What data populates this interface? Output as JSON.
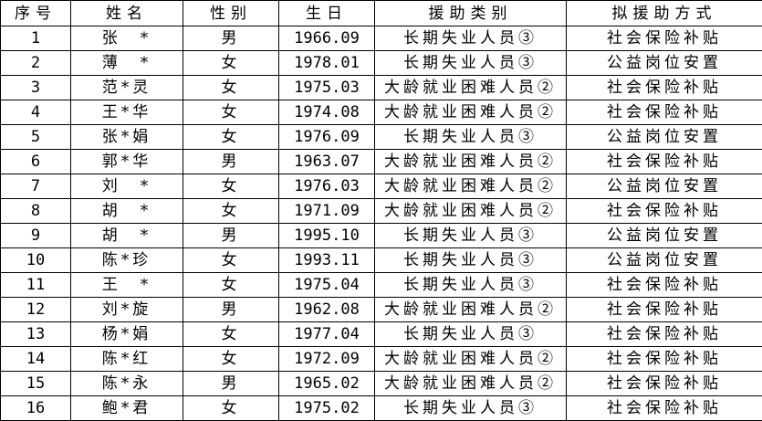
{
  "headers": [
    "序号",
    "姓名",
    "性别",
    "生日",
    "援助类别",
    "拟援助方式"
  ],
  "rows": [
    [
      "1",
      "张　*",
      "男",
      "1966.09",
      "长期失业人员③",
      "社会保险补贴"
    ],
    [
      "2",
      "薄　*",
      "女",
      "1978.01",
      "长期失业人员③",
      "公益岗位安置"
    ],
    [
      "3",
      "范*灵",
      "女",
      "1975.03",
      "大龄就业困难人员②",
      "社会保险补贴"
    ],
    [
      "4",
      "王*华",
      "女",
      "1974.08",
      "大龄就业困难人员②",
      "社会保险补贴"
    ],
    [
      "5",
      "张*娟",
      "女",
      "1976.09",
      "长期失业人员③",
      "公益岗位安置"
    ],
    [
      "6",
      "郭*华",
      "男",
      "1963.07",
      "大龄就业困难人员②",
      "社会保险补贴"
    ],
    [
      "7",
      "刘　*",
      "女",
      "1976.03",
      "大龄就业困难人员②",
      "公益岗位安置"
    ],
    [
      "8",
      "胡　*",
      "女",
      "1971.09",
      "大龄就业困难人员②",
      "社会保险补贴"
    ],
    [
      "9",
      "胡　*",
      "男",
      "1995.10",
      "长期失业人员③",
      "公益岗位安置"
    ],
    [
      "10",
      "陈*珍",
      "女",
      "1993.11",
      "长期失业人员③",
      "公益岗位安置"
    ],
    [
      "11",
      "王　*",
      "女",
      "1975.04",
      "长期失业人员③",
      "社会保险补贴"
    ],
    [
      "12",
      "刘*旋",
      "男",
      "1962.08",
      "大龄就业困难人员②",
      "社会保险补贴"
    ],
    [
      "13",
      "杨*娟",
      "女",
      "1977.04",
      "长期失业人员③",
      "社会保险补贴"
    ],
    [
      "14",
      "陈*红",
      "女",
      "1972.09",
      "大龄就业困难人员②",
      "社会保险补贴"
    ],
    [
      "15",
      "陈*永",
      "男",
      "1965.02",
      "大龄就业困难人员②",
      "社会保险补贴"
    ],
    [
      "16",
      "鲍*君",
      "女",
      "1975.02",
      "长期失业人员③",
      "社会保险补贴"
    ]
  ]
}
